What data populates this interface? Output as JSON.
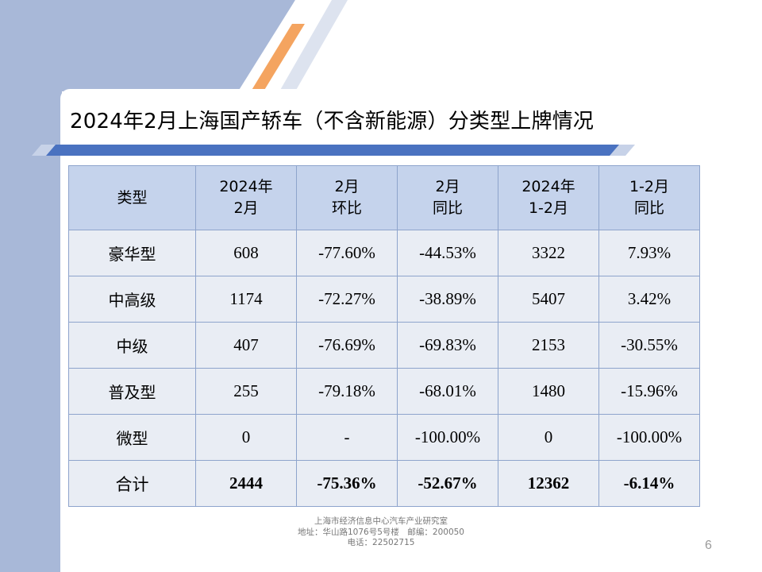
{
  "slide": {
    "title": "2024年2月上海国产轿车（不含新能源）分类型上牌情况",
    "page_number": "6"
  },
  "table": {
    "headers": [
      [
        "类型"
      ],
      [
        "2024年",
        "2月"
      ],
      [
        "2月",
        "环比"
      ],
      [
        "2月",
        "同比"
      ],
      [
        "2024年",
        "1-2月"
      ],
      [
        "1-2月",
        "同比"
      ]
    ],
    "rows": [
      [
        "豪华型",
        "608",
        "-77.60%",
        "-44.53%",
        "3322",
        "7.93%"
      ],
      [
        "中高级",
        "1174",
        "-72.27%",
        "-38.89%",
        "5407",
        "3.42%"
      ],
      [
        "中级",
        "407",
        "-76.69%",
        "-69.83%",
        "2153",
        "-30.55%"
      ],
      [
        "普及型",
        "255",
        "-79.18%",
        "-68.01%",
        "1480",
        "-15.96%"
      ],
      [
        "微型",
        "0",
        "-",
        "-100.00%",
        "0",
        "-100.00%"
      ],
      [
        "合计",
        "2444",
        "-75.36%",
        "-52.67%",
        "12362",
        "-6.14%"
      ]
    ]
  },
  "footer": {
    "line1": "上海市经济信息中心汽车产业研究室",
    "line2": "地址：华山路1076号5号楼　邮编：200050",
    "line3": "电话：22502715"
  },
  "colors": {
    "header_fill": "#c5d3ec",
    "body_fill": "#e9edf4",
    "border": "#8ea4cc",
    "accent_orange": "#f4a460",
    "left_band": "#a8b8d8",
    "title_bar": "#4a72c0"
  }
}
